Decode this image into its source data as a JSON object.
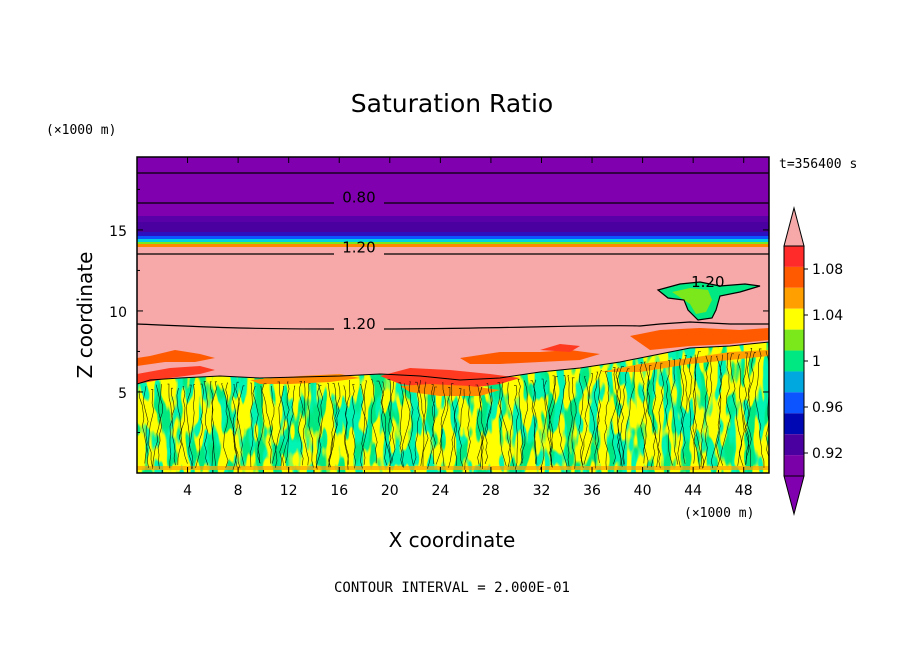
{
  "chart_data": {
    "type": "heatmap",
    "title": "Saturation Ratio",
    "xlabel": "X coordinate",
    "ylabel": "Z coordinate",
    "x_unit": "(×1000 m)",
    "y_unit": "(×1000 m)",
    "time_label": "t=356400 s",
    "footer": "CONTOUR INTERVAL = 2.000E-01",
    "xlim": [
      0,
      50
    ],
    "ylim": [
      0,
      19.5
    ],
    "x_ticks": [
      4,
      8,
      12,
      16,
      20,
      24,
      28,
      32,
      36,
      40,
      44,
      48
    ],
    "y_ticks": [
      5,
      10,
      15
    ],
    "colorbar": {
      "levels": [
        0.9,
        0.92,
        0.94,
        0.96,
        0.98,
        1.0,
        1.02,
        1.04,
        1.06,
        1.08,
        1.1
      ],
      "tick_labels": [
        "1.08",
        "1.04",
        "1",
        "0.96",
        "0.92"
      ],
      "tick_values": [
        1.08,
        1.04,
        1.0,
        0.96,
        0.92
      ],
      "colors": [
        "#7a00a8",
        "#4a00a0",
        "#0008b4",
        "#0c54ff",
        "#00a8e0",
        "#00e882",
        "#7ae81a",
        "#ffff00",
        "#ffa000",
        "#ff5a00",
        "#ff2a2a"
      ],
      "over_color": "#f7a8a8",
      "under_color": "#8000b0"
    },
    "contour_labels": [
      {
        "text": "0.80",
        "x": 17.4,
        "z": 17.0
      },
      {
        "text": "1.20",
        "x": 17.4,
        "z": 13.9
      },
      {
        "text": "1.20",
        "x": 17.4,
        "z": 9.2
      },
      {
        "text": "1.20",
        "x": 45.0,
        "z": 11.8
      }
    ],
    "regions": {
      "upper_dry_layer": {
        "z_range": [
          14.5,
          19.5
        ],
        "value": "< 0.90"
      },
      "moist_layer": {
        "z_range": [
          6.0,
          14.0
        ],
        "value": "> 1.10"
      },
      "turbulent_boundary_layer": {
        "z_range": [
          0,
          6.0
        ],
        "value": "0.98 - 1.04"
      }
    }
  }
}
